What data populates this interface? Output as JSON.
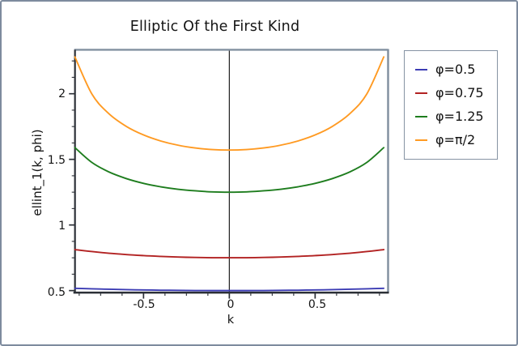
{
  "title": "Elliptic Of the First Kind",
  "axes": {
    "xlabel": "k",
    "ylabel": "ellint_1(k, phi)",
    "x_range": [
      -0.8995,
      0.9252
    ],
    "y_range": [
      0.4847,
      2.3349
    ],
    "zero_line_x": 0,
    "x_major_ticks": [
      {
        "value": -0.5,
        "label": "-0.5"
      },
      {
        "value": 0,
        "label": "0"
      },
      {
        "value": 0.5,
        "label": "0.5"
      }
    ],
    "x_minor_ticks": [
      -0.875,
      -0.75,
      -0.625,
      -0.375,
      -0.25,
      -0.125,
      0.125,
      0.25,
      0.375,
      0.625,
      0.75,
      0.875
    ],
    "y_major_ticks": [
      {
        "value": 0.5,
        "label": "0.5"
      },
      {
        "value": 1,
        "label": "1"
      },
      {
        "value": 1.5,
        "label": "1.5"
      },
      {
        "value": 2,
        "label": "2"
      }
    ],
    "y_minor_ticks": [
      0.625,
      0.75,
      0.875,
      1.125,
      1.25,
      1.375,
      1.625,
      1.75,
      1.875,
      2.125,
      2.25
    ]
  },
  "chart_data": {
    "type": "line",
    "title": "Elliptic Of the First Kind",
    "xlabel": "k",
    "ylabel": "ellint_1(k, phi)",
    "xlim": [
      -0.9,
      0.925
    ],
    "ylim": [
      0.48,
      2.33
    ],
    "grid": false,
    "legend_position": "outside-right",
    "x": [
      -0.9,
      -0.8,
      -0.7,
      -0.6,
      -0.5,
      -0.4,
      -0.3,
      -0.2,
      -0.1,
      0,
      0.1,
      0.2,
      0.3,
      0.4,
      0.5,
      0.6,
      0.7,
      0.8,
      0.9
    ],
    "series": [
      {
        "name": "φ=0.5",
        "color": "#3c3cb4",
        "values": [
          0.5176,
          0.5136,
          0.5102,
          0.5074,
          0.5051,
          0.5032,
          0.5018,
          0.5008,
          0.5002,
          0.5,
          0.5002,
          0.5008,
          0.5018,
          0.5032,
          0.5051,
          0.5074,
          0.5102,
          0.5136,
          0.5176
        ]
      },
      {
        "name": "φ=0.75",
        "color": "#b22222",
        "values": [
          0.8126,
          0.797,
          0.7846,
          0.7746,
          0.7666,
          0.7604,
          0.7558,
          0.7525,
          0.7506,
          0.75,
          0.7506,
          0.7525,
          0.7558,
          0.7604,
          0.7666,
          0.7746,
          0.7846,
          0.797,
          0.8126
        ]
      },
      {
        "name": "φ=1.25",
        "color": "#1e7d1e",
        "values": [
          1.5891,
          1.4754,
          1.403,
          1.3534,
          1.3174,
          1.2911,
          1.2723,
          1.2601,
          1.2524,
          1.25,
          1.2524,
          1.2601,
          1.2723,
          1.2911,
          1.3174,
          1.3534,
          1.403,
          1.4754,
          1.5891
        ]
      },
      {
        "name": "φ=π/2",
        "color": "#ff9a22",
        "values": [
          2.2805,
          1.9953,
          1.8457,
          1.7508,
          1.6858,
          1.64,
          1.608,
          1.5869,
          1.5747,
          1.5708,
          1.5747,
          1.5869,
          1.608,
          1.64,
          1.6858,
          1.7508,
          1.8457,
          1.9953,
          2.2805
        ]
      }
    ]
  },
  "colors": {
    "axis_dark": "#2b2f36",
    "axis_light": "#8290a0",
    "frame_border": "#7d8b9e",
    "zero_line": "#1a1a1a"
  }
}
